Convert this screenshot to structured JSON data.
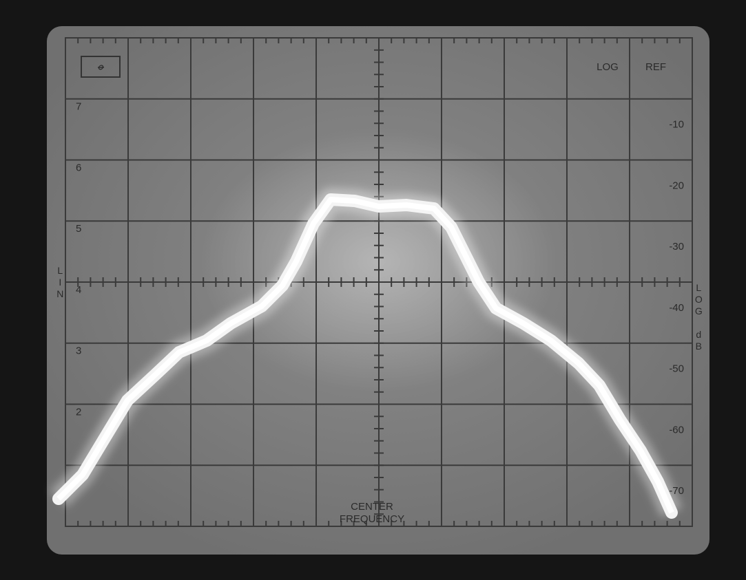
{
  "top_labels": [
    "LOG",
    "REF"
  ],
  "left_scale": {
    "label": "LIN",
    "values": [
      "7",
      "6",
      "5",
      "4",
      "3",
      "2"
    ]
  },
  "right_scale": {
    "label": "LOG dB",
    "values": [
      "-10",
      "-20",
      "-30",
      "-40",
      "-50",
      "-60",
      "-70"
    ]
  },
  "center_label": [
    "CENTER",
    "FREQUENCY"
  ]
}
